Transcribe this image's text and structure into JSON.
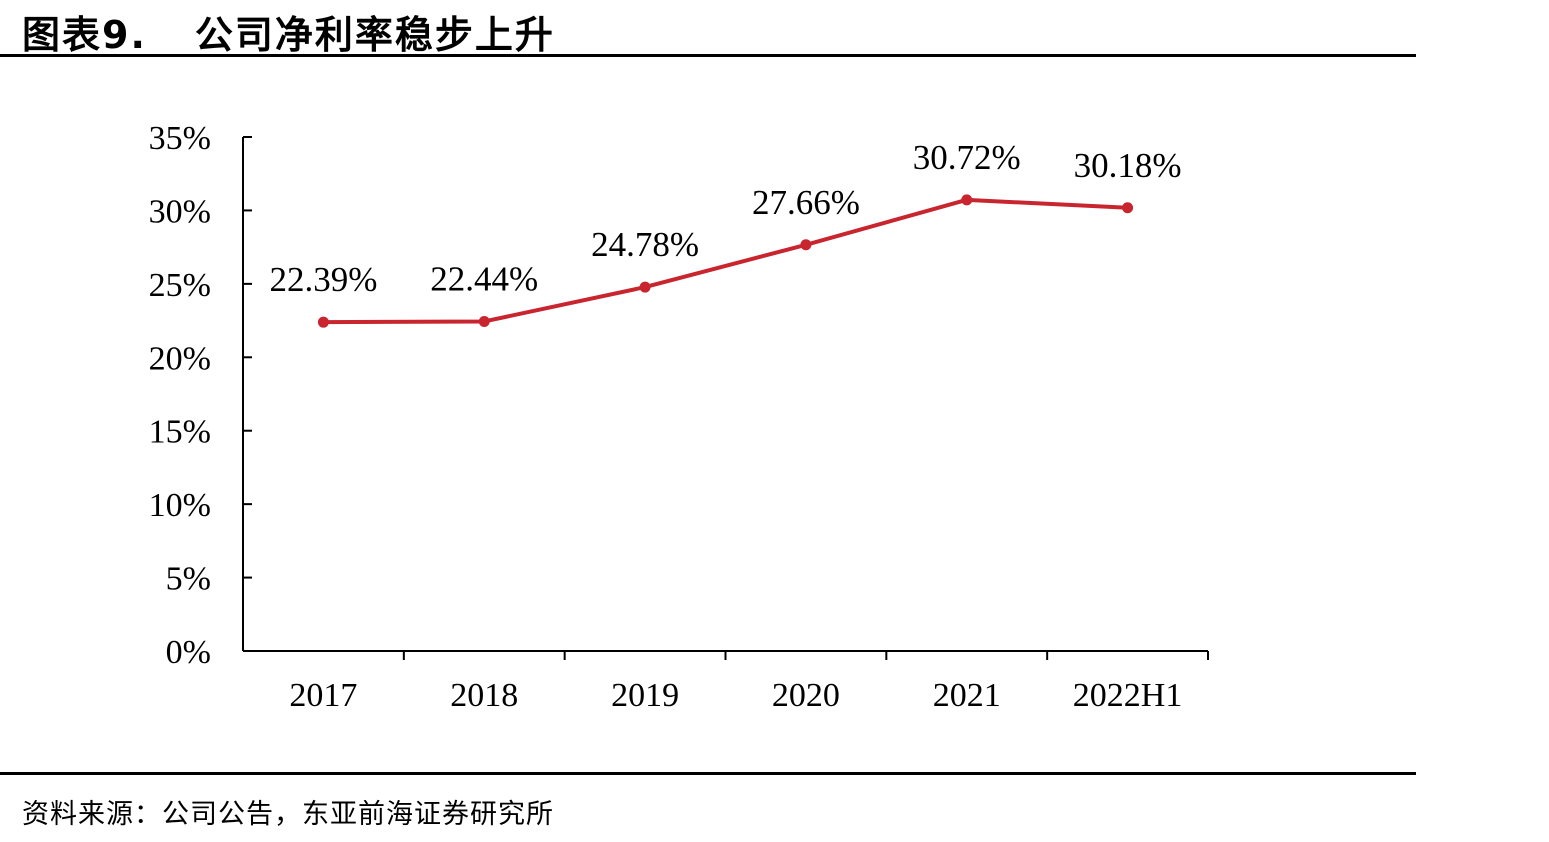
{
  "header": {
    "figure_label": "图表9.",
    "title": "公司净利率稳步上升"
  },
  "footer": {
    "source": "资料来源：公司公告，东亚前海证券研究所"
  },
  "colors": {
    "series_line": "#c8252f",
    "axis": "#000000"
  },
  "chart_data": {
    "type": "line",
    "categories": [
      "2017",
      "2018",
      "2019",
      "2020",
      "2021",
      "2022H1"
    ],
    "series": [
      {
        "values": [
          22.39,
          22.44,
          24.78,
          27.66,
          30.72,
          30.18
        ],
        "labels": [
          "22.39%",
          "22.44%",
          "24.78%",
          "27.66%",
          "30.72%",
          "30.18%"
        ]
      }
    ],
    "y_ticks": [
      "0%",
      "5%",
      "10%",
      "15%",
      "20%",
      "25%",
      "30%",
      "35%"
    ],
    "ylim": [
      0,
      35
    ],
    "grid": false,
    "legend": "none"
  }
}
